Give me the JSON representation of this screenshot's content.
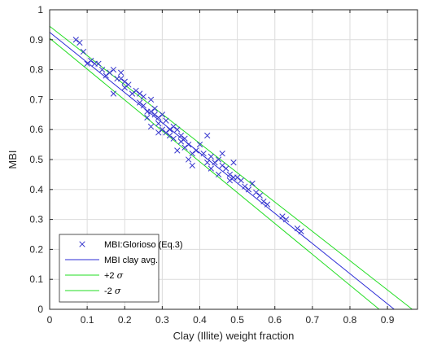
{
  "chart_data": {
    "type": "scatter",
    "title": "",
    "xlabel": "Clay (Illite) weight fraction",
    "ylabel": "MBI",
    "xlim": [
      0,
      0.98
    ],
    "ylim": [
      0,
      1
    ],
    "x_ticks": [
      0,
      0.1,
      0.2,
      0.3,
      0.4,
      0.5,
      0.6,
      0.7,
      0.8,
      0.9
    ],
    "x_tick_labels": [
      "0",
      "0.1",
      "0.2",
      "0.3",
      "0.4",
      "0.5",
      "0.6",
      "0.7",
      "0.8",
      "0.9"
    ],
    "y_ticks": [
      0,
      0.1,
      0.2,
      0.3,
      0.4,
      0.5,
      0.6,
      0.7,
      0.8,
      0.9,
      1
    ],
    "y_tick_labels": [
      "0",
      "0.1",
      "0.2",
      "0.3",
      "0.4",
      "0.5",
      "0.6",
      "0.7",
      "0.8",
      "0.9",
      "1"
    ],
    "grid": true,
    "legend_position": "bottom-left",
    "series": [
      {
        "name": "MBI:Glorioso (Eq.3)",
        "kind": "scatter",
        "marker": "x",
        "color": "#3333cc",
        "points": [
          [
            0.07,
            0.9
          ],
          [
            0.08,
            0.89
          ],
          [
            0.09,
            0.86
          ],
          [
            0.1,
            0.82
          ],
          [
            0.11,
            0.83
          ],
          [
            0.12,
            0.82
          ],
          [
            0.13,
            0.82
          ],
          [
            0.14,
            0.8
          ],
          [
            0.15,
            0.78
          ],
          [
            0.16,
            0.79
          ],
          [
            0.17,
            0.8
          ],
          [
            0.17,
            0.72
          ],
          [
            0.18,
            0.77
          ],
          [
            0.19,
            0.79
          ],
          [
            0.19,
            0.77
          ],
          [
            0.2,
            0.76
          ],
          [
            0.2,
            0.74
          ],
          [
            0.21,
            0.75
          ],
          [
            0.22,
            0.72
          ],
          [
            0.23,
            0.73
          ],
          [
            0.24,
            0.72
          ],
          [
            0.24,
            0.69
          ],
          [
            0.25,
            0.71
          ],
          [
            0.25,
            0.68
          ],
          [
            0.26,
            0.66
          ],
          [
            0.26,
            0.64
          ],
          [
            0.27,
            0.7
          ],
          [
            0.27,
            0.66
          ],
          [
            0.27,
            0.61
          ],
          [
            0.28,
            0.67
          ],
          [
            0.28,
            0.65
          ],
          [
            0.29,
            0.64
          ],
          [
            0.29,
            0.62
          ],
          [
            0.29,
            0.59
          ],
          [
            0.3,
            0.65
          ],
          [
            0.3,
            0.6
          ],
          [
            0.31,
            0.63
          ],
          [
            0.31,
            0.59
          ],
          [
            0.32,
            0.6
          ],
          [
            0.32,
            0.58
          ],
          [
            0.33,
            0.61
          ],
          [
            0.33,
            0.57
          ],
          [
            0.34,
            0.6
          ],
          [
            0.34,
            0.53
          ],
          [
            0.35,
            0.58
          ],
          [
            0.35,
            0.56
          ],
          [
            0.36,
            0.57
          ],
          [
            0.36,
            0.54
          ],
          [
            0.37,
            0.55
          ],
          [
            0.37,
            0.5
          ],
          [
            0.38,
            0.52
          ],
          [
            0.38,
            0.48
          ],
          [
            0.39,
            0.53
          ],
          [
            0.4,
            0.55
          ],
          [
            0.41,
            0.52
          ],
          [
            0.42,
            0.49
          ],
          [
            0.42,
            0.58
          ],
          [
            0.43,
            0.51
          ],
          [
            0.43,
            0.47
          ],
          [
            0.44,
            0.49
          ],
          [
            0.45,
            0.45
          ],
          [
            0.45,
            0.5
          ],
          [
            0.46,
            0.48
          ],
          [
            0.46,
            0.52
          ],
          [
            0.47,
            0.47
          ],
          [
            0.48,
            0.45
          ],
          [
            0.48,
            0.43
          ],
          [
            0.49,
            0.44
          ],
          [
            0.49,
            0.49
          ],
          [
            0.5,
            0.44
          ],
          [
            0.51,
            0.43
          ],
          [
            0.52,
            0.41
          ],
          [
            0.53,
            0.4
          ],
          [
            0.54,
            0.42
          ],
          [
            0.55,
            0.39
          ],
          [
            0.56,
            0.38
          ],
          [
            0.57,
            0.36
          ],
          [
            0.58,
            0.35
          ],
          [
            0.62,
            0.31
          ],
          [
            0.63,
            0.3
          ],
          [
            0.66,
            0.27
          ],
          [
            0.67,
            0.26
          ]
        ]
      },
      {
        "name": "MBI clay avg.",
        "kind": "line",
        "color": "#2b2bd6",
        "line": [
          [
            0,
            0.925
          ],
          [
            0.918,
            0
          ]
        ]
      },
      {
        "name": "+2 σ",
        "kind": "line",
        "color": "#22dd22",
        "line": [
          [
            0,
            0.945
          ],
          [
            0.966,
            0
          ]
        ]
      },
      {
        "name": "-2 σ",
        "kind": "line",
        "color": "#22dd22",
        "line": [
          [
            0,
            0.905
          ],
          [
            0.878,
            0
          ]
        ]
      }
    ]
  }
}
